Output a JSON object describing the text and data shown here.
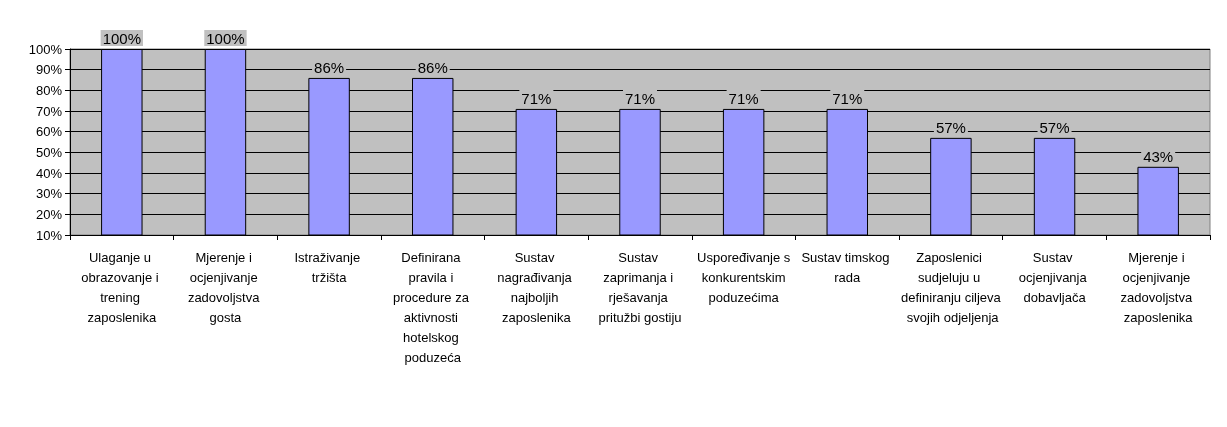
{
  "chart_data": {
    "type": "bar",
    "categories": [
      "Ulaganje u obrazovanje i trening zaposlenika",
      "Mjerenje i ocjenjivanje zadovoljstva gosta",
      "Istraživanje tržišta",
      "Definirana pravila i procedure za aktivnosti hotelskog poduzeća",
      "Sustav nagrađivanja najboljih zaposlenika",
      "Sustav zaprimanja i rješavanja pritužbi gostiju",
      "Uspoređivanje s konkurentskim poduzećima",
      "Sustav timskog rada",
      "Zaposlenici sudjeluju u definiranju ciljeva svojih odjeljenja",
      "Sustav ocjenjivanja dobavljača",
      "Mjerenje i ocjenjivanje zadovoljstva zaposlenika"
    ],
    "values": [
      100,
      100,
      86,
      86,
      71,
      71,
      71,
      71,
      57,
      57,
      43
    ],
    "value_labels": [
      "100%",
      "100%",
      "86%",
      "86%",
      "71%",
      "71%",
      "71%",
      "71%",
      "57%",
      "57%",
      "43%"
    ],
    "color": "#9999ff",
    "ylim": [
      10,
      100
    ],
    "yticks": [
      {
        "value": 10,
        "label": "10%"
      },
      {
        "value": 20,
        "label": "20%"
      },
      {
        "value": 30,
        "label": "30%"
      },
      {
        "value": 40,
        "label": "40%"
      },
      {
        "value": 50,
        "label": "50%"
      },
      {
        "value": 60,
        "label": "60%"
      },
      {
        "value": 70,
        "label": "70%"
      },
      {
        "value": 80,
        "label": "80%"
      },
      {
        "value": 90,
        "label": "90%"
      },
      {
        "value": 100,
        "label": "100%"
      }
    ],
    "grid": "y"
  }
}
